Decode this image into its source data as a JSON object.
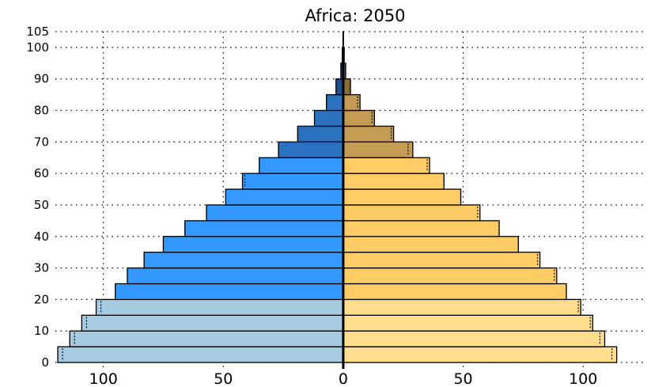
{
  "chart_data": {
    "type": "bar",
    "title": "Africa: 2050",
    "orientation": "horizontal",
    "layout": "population-pyramid",
    "age_groups": [
      "0-4",
      "5-9",
      "10-14",
      "15-19",
      "20-24",
      "25-29",
      "30-34",
      "35-39",
      "40-44",
      "45-49",
      "50-54",
      "55-59",
      "60-64",
      "65-69",
      "70-74",
      "75-79",
      "80-84",
      "85-89",
      "90-94",
      "95-99",
      "100+"
    ],
    "series": [
      {
        "side": "left",
        "values": [
          119,
          114,
          109,
          103,
          95,
          90,
          83,
          75,
          66,
          57,
          49,
          42,
          35,
          27,
          19,
          12,
          7,
          3,
          1,
          0.4,
          0.1
        ],
        "band_colors": [
          "#a6cbe0",
          "#3399ff",
          "#2a72c0",
          "#1f4f8a"
        ]
      },
      {
        "side": "right",
        "values": [
          114,
          109,
          104,
          99,
          93,
          89,
          82,
          73,
          65,
          57,
          49,
          42,
          36,
          29,
          21,
          13,
          7,
          3,
          1,
          0.4,
          0.1
        ],
        "band_colors": [
          "#ffdd8c",
          "#ffcc66",
          "#c39b52",
          "#8c6d38"
        ]
      }
    ],
    "markers": {
      "left": [
        117,
        112,
        107,
        101,
        95,
        90,
        83,
        75,
        66,
        57,
        49,
        41,
        35,
        27,
        19,
        12,
        7,
        3,
        1,
        0.4,
        0.1
      ],
      "right": [
        112,
        107,
        103,
        98,
        93,
        88,
        81,
        73,
        65,
        56,
        49,
        42,
        35,
        27,
        20,
        12,
        6,
        3,
        1,
        0.4,
        0.1
      ]
    },
    "xlim": [
      -120,
      125
    ],
    "ylim": [
      -2,
      105
    ],
    "x_tick_values": [
      -100,
      -50,
      0,
      50,
      100
    ],
    "x_tick_labels": [
      "100",
      "50",
      "0",
      "50",
      "100"
    ],
    "y_ticks": [
      0,
      10,
      20,
      30,
      40,
      50,
      60,
      70,
      80,
      90,
      100,
      105
    ],
    "y_tick_labels": [
      "0",
      "10",
      "20",
      "30",
      "40",
      "50",
      "60",
      "70",
      "80",
      "90",
      "100",
      "105"
    ],
    "grid": true,
    "grid_style": "dotted",
    "xlabel": "",
    "ylabel": ""
  }
}
